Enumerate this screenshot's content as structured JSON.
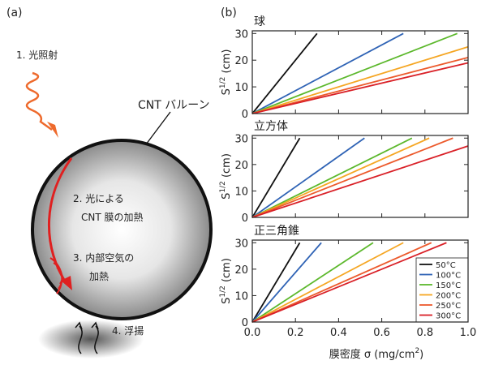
{
  "panel_labels": [
    "(a)",
    "(b)"
  ],
  "diagram": {
    "labels": [
      "1. 光照射",
      "CNT バルーン",
      "2. 光による",
      "CNT 膜の加熱",
      "3. 内部空気の",
      "加熱",
      "4. 浮揚"
    ]
  },
  "chart_data": [
    {
      "type": "line",
      "title": "球",
      "ylabel": [
        "S",
        "1/2",
        " (cm)"
      ],
      "xlim": [
        0,
        1.0
      ],
      "ylim": [
        0,
        31
      ],
      "yticks": [
        0,
        10,
        20,
        30
      ],
      "series": [
        {
          "name": "50°C",
          "color": "#111111",
          "x": [
            0,
            0.3
          ],
          "values": [
            0,
            30
          ]
        },
        {
          "name": "100°C",
          "color": "#2f63b5",
          "x": [
            0,
            0.7
          ],
          "values": [
            0,
            30
          ]
        },
        {
          "name": "150°C",
          "color": "#5cb82c",
          "x": [
            0,
            0.95
          ],
          "values": [
            0,
            30
          ]
        },
        {
          "name": "200°C",
          "color": "#f5a623",
          "x": [
            0,
            1.0
          ],
          "values": [
            0,
            25
          ]
        },
        {
          "name": "250°C",
          "color": "#ec5a2c",
          "x": [
            0,
            1.0
          ],
          "values": [
            0,
            21
          ]
        },
        {
          "name": "300°C",
          "color": "#d92027",
          "x": [
            0,
            1.0
          ],
          "values": [
            0,
            19
          ]
        }
      ]
    },
    {
      "type": "line",
      "title": "立方体",
      "ylabel": [
        "S",
        "1/2",
        " (cm)"
      ],
      "xlim": [
        0,
        1.0
      ],
      "ylim": [
        0,
        31
      ],
      "yticks": [
        0,
        10,
        20,
        30
      ],
      "series": [
        {
          "name": "50°C",
          "color": "#111111",
          "x": [
            0,
            0.22
          ],
          "values": [
            0,
            30
          ]
        },
        {
          "name": "100°C",
          "color": "#2f63b5",
          "x": [
            0,
            0.52
          ],
          "values": [
            0,
            30
          ]
        },
        {
          "name": "150°C",
          "color": "#5cb82c",
          "x": [
            0,
            0.74
          ],
          "values": [
            0,
            30
          ]
        },
        {
          "name": "200°C",
          "color": "#f5a623",
          "x": [
            0,
            0.82
          ],
          "values": [
            0,
            30
          ]
        },
        {
          "name": "250°C",
          "color": "#ec5a2c",
          "x": [
            0,
            0.93
          ],
          "values": [
            0,
            30
          ]
        },
        {
          "name": "300°C",
          "color": "#d92027",
          "x": [
            0,
            1.0
          ],
          "values": [
            0,
            27
          ]
        }
      ]
    },
    {
      "type": "line",
      "title": "正三角錐",
      "ylabel": [
        "S",
        "1/2",
        " (cm)"
      ],
      "xlabel": [
        "膜密度 σ (mg/cm",
        "2",
        ")"
      ],
      "xlim": [
        0,
        1.0
      ],
      "ylim": [
        0,
        31
      ],
      "yticks": [
        0,
        10,
        20,
        30
      ],
      "xticks": [
        {
          "value": 0,
          "label": "0.0"
        },
        0.2,
        0.4,
        0.6,
        0.8,
        {
          "value": 1.0,
          "label": "1.0"
        }
      ],
      "legend": "lower right",
      "series": [
        {
          "name": "50°C",
          "color": "#111111",
          "x": [
            0,
            0.22
          ],
          "values": [
            0,
            30
          ]
        },
        {
          "name": "100°C",
          "color": "#2f63b5",
          "x": [
            0,
            0.32
          ],
          "values": [
            0,
            30
          ]
        },
        {
          "name": "150°C",
          "color": "#5cb82c",
          "x": [
            0,
            0.56
          ],
          "values": [
            0,
            30
          ]
        },
        {
          "name": "200°C",
          "color": "#f5a623",
          "x": [
            0,
            0.7
          ],
          "values": [
            0,
            30
          ]
        },
        {
          "name": "250°C",
          "color": "#ec5a2c",
          "x": [
            0,
            0.83
          ],
          "values": [
            0,
            30
          ]
        },
        {
          "name": "300°C",
          "color": "#d92027",
          "x": [
            0,
            0.9
          ],
          "values": [
            0,
            30
          ]
        }
      ]
    }
  ]
}
